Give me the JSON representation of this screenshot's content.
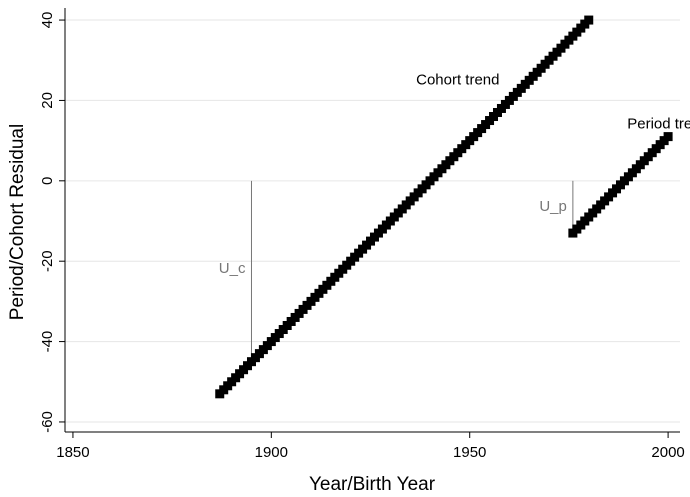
{
  "chart_data": {
    "type": "scatter",
    "x_label": "Year/Birth Year",
    "y_label": "Period/Cohort Residual",
    "xlim": [
      1848,
      2003
    ],
    "xticks": [
      1850,
      1900,
      1950,
      2000
    ],
    "ylim": [
      -62.5,
      43
    ],
    "yticks": [
      -60,
      -40,
      -20,
      0,
      20,
      40
    ],
    "grid": true,
    "series": [
      {
        "name": "Cohort trend",
        "color": "#000000",
        "x": [
          1887,
          1888,
          1889,
          1890,
          1891,
          1892,
          1893,
          1894,
          1895,
          1896,
          1897,
          1898,
          1899,
          1900,
          1901,
          1902,
          1903,
          1904,
          1905,
          1906,
          1907,
          1908,
          1909,
          1910,
          1911,
          1912,
          1913,
          1914,
          1915,
          1916,
          1917,
          1918,
          1919,
          1920,
          1921,
          1922,
          1923,
          1924,
          1925,
          1926,
          1927,
          1928,
          1929,
          1930,
          1931,
          1932,
          1933,
          1934,
          1935,
          1936,
          1937,
          1938,
          1939,
          1940,
          1941,
          1942,
          1943,
          1944,
          1945,
          1946,
          1947,
          1948,
          1949,
          1950,
          1951,
          1952,
          1953,
          1954,
          1955,
          1956,
          1957,
          1958,
          1959,
          1960,
          1961,
          1962,
          1963,
          1964,
          1965,
          1966,
          1967,
          1968,
          1969,
          1970,
          1971,
          1972,
          1973,
          1974,
          1975,
          1976,
          1977,
          1978,
          1979,
          1980
        ],
        "values": [
          -53,
          -52,
          -51,
          -50,
          -49,
          -48,
          -47,
          -46,
          -45,
          -44,
          -43,
          -42,
          -41,
          -40,
          -39,
          -38,
          -37,
          -36,
          -35,
          -34,
          -33,
          -32,
          -31,
          -30,
          -29,
          -28,
          -27,
          -26,
          -25,
          -24,
          -23,
          -22,
          -21,
          -20,
          -19,
          -18,
          -17,
          -16,
          -15,
          -14,
          -13,
          -12,
          -11,
          -10,
          -9,
          -8,
          -7,
          -6,
          -5,
          -4,
          -3,
          -2,
          -1,
          0,
          1,
          2,
          3,
          4,
          5,
          6,
          7,
          8,
          9,
          10,
          11,
          12,
          13,
          14,
          15,
          16,
          17,
          18,
          19,
          20,
          21,
          22,
          23,
          24,
          25,
          26,
          27,
          28,
          29,
          30,
          31,
          32,
          33,
          34,
          35,
          36,
          37,
          38,
          39,
          40
        ]
      },
      {
        "name": "Period trend",
        "color": "#000000",
        "x": [
          1976,
          1977,
          1978,
          1979,
          1980,
          1981,
          1982,
          1983,
          1984,
          1985,
          1986,
          1987,
          1988,
          1989,
          1990,
          1991,
          1992,
          1993,
          1994,
          1995,
          1996,
          1997,
          1998,
          1999,
          2000
        ],
        "values": [
          -13,
          -12,
          -11,
          -10,
          -9,
          -8,
          -7,
          -6,
          -5,
          -4,
          -3,
          -2,
          -1,
          0,
          1,
          2,
          3,
          4,
          5,
          6,
          7,
          8,
          9,
          10,
          11
        ]
      }
    ],
    "annotations": [
      {
        "text": "Cohort trend",
        "x": 1947,
        "y": 25
      },
      {
        "text": "Period trend",
        "x": 2000,
        "y": 14
      }
    ],
    "ref_lines": [
      {
        "label": "U_c",
        "x": 1895,
        "y": [
          0,
          -44
        ]
      },
      {
        "label": "U_p",
        "x": 1976,
        "y": [
          0,
          -13
        ]
      }
    ]
  }
}
